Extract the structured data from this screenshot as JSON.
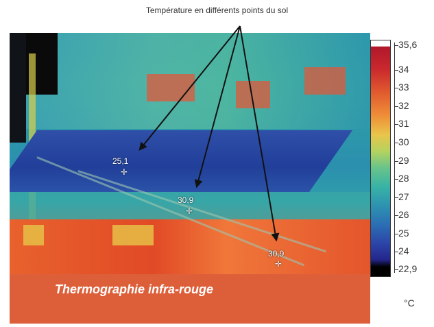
{
  "annotation": {
    "title": "Température en différents points du sol"
  },
  "measurements": [
    {
      "value": "25,1"
    },
    {
      "value": "30,9"
    },
    {
      "value": "30,9"
    }
  ],
  "caption": "Thermographie infra-rouge",
  "scale": {
    "labels": [
      "35,6",
      "34",
      "33",
      "32",
      "31",
      "30",
      "29",
      "28",
      "27",
      "26",
      "25",
      "24",
      "22,9"
    ],
    "unit": "°C"
  },
  "colors": {
    "caption_bg": "#dd5f3a",
    "arrow": "#111111"
  }
}
